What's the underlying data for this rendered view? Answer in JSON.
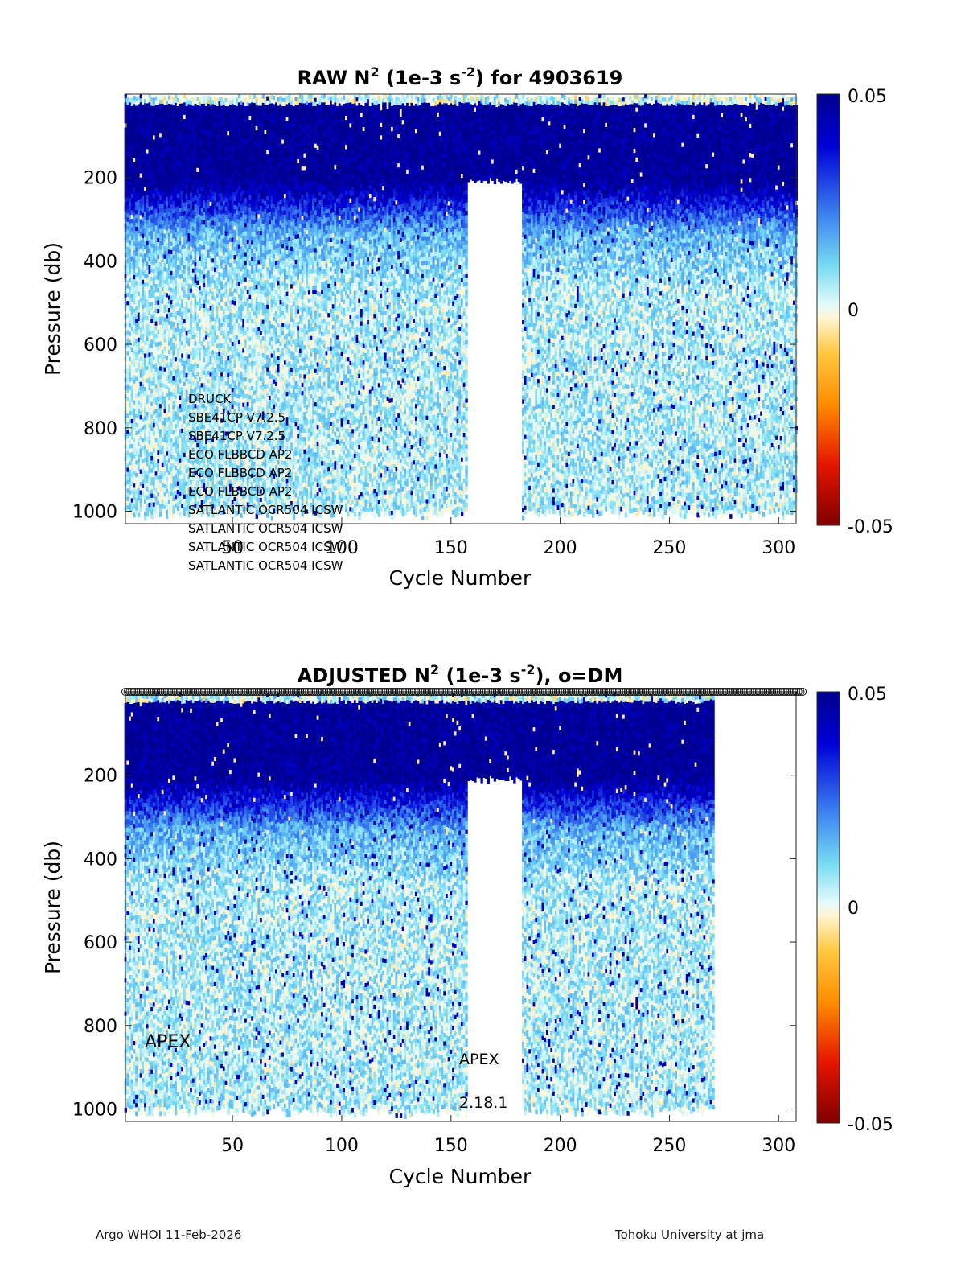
{
  "chart_data": [
    {
      "type": "heatmap",
      "title_prefix": "RAW N",
      "title_sup1": "2",
      "title_mid": " (1e-3 s",
      "title_sup2": "-2",
      "title_suffix": ") for 4903619",
      "xlabel": "Cycle Number",
      "ylabel": "Pressure (db)",
      "xlim": [
        1,
        308
      ],
      "ylim": [
        1030,
        0
      ],
      "xticks": [
        50,
        100,
        150,
        200,
        250,
        300
      ],
      "yticks": [
        200,
        400,
        600,
        800,
        1000
      ],
      "colorbar": {
        "range": [
          -0.05,
          0.05
        ],
        "tick_labels": [
          "0.05",
          "0",
          "-0.05"
        ]
      },
      "data_cycles": [
        1,
        308
      ],
      "gap": {
        "cycles": [
          158,
          182
        ],
        "starts_db": 200
      },
      "pattern": "strongly positive N2 (0.03 to 0.05) from 20 to about 300 db, weakly positive (0 to 0.01) below 400 db",
      "annotations": [
        "DRUCK",
        "SBE41CP V7.2.5",
        "SBE41CP V7.2.5",
        "ECO FLBBCD AP2",
        "ECO FLBBCD AP2",
        "ECO FLBBCD AP2",
        "SATLANTIC OCR504 ICSW",
        "SATLANTIC OCR504 ICSW",
        "SATLANTIC OCR504 ICSW",
        "SATLANTIC OCR504 ICSW"
      ]
    },
    {
      "type": "heatmap",
      "title_prefix": "ADJUSTED N",
      "title_sup1": "2",
      "title_mid": " (1e-3 s",
      "title_sup2": "-2",
      "title_suffix": "), o=DM",
      "xlabel": "Cycle Number",
      "ylabel": "Pressure (db)",
      "xlim": [
        1,
        308
      ],
      "ylim": [
        1030,
        0
      ],
      "xticks": [
        50,
        100,
        150,
        200,
        250,
        300
      ],
      "yticks": [
        200,
        400,
        600,
        800,
        1000
      ],
      "colorbar": {
        "range": [
          -0.05,
          0.05
        ],
        "tick_labels": [
          "0.05",
          "0",
          "-0.05"
        ]
      },
      "data_cycles": [
        1,
        270
      ],
      "gap": {
        "cycles": [
          158,
          182
        ],
        "starts_db": 200
      },
      "qc_marker_cycles": [
        1,
        311
      ],
      "pattern": "strongly positive N2 (0.03 to 0.05) from 20 to about 300 db, weakly positive (0 to 0.01) below 400 db",
      "annotations": [
        "APEX",
        "APEX",
        "2.18.1"
      ]
    }
  ],
  "footer": {
    "left": "Argo WHOI 11-Feb-2026",
    "right": "Tohoku University at jma"
  },
  "colors": {
    "deep_blue": "#00008f",
    "cyan": "#b4f0f5",
    "zero": "#fff5d2",
    "dark_red": "#800000"
  }
}
